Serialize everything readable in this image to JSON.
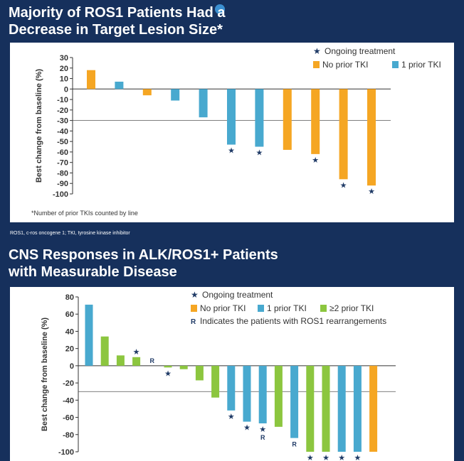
{
  "top": {
    "title_line1": "Majority of ROS1 Patients Had a",
    "title_line2": "Decrease in Target Lesion Size*",
    "footnote": "*Number of prior TKIs counted by line"
  },
  "abbreviations": "ROS1, c-ros oncogene 1; TKI, tyrosine kinase inhibitor",
  "bottom": {
    "title_line1": "CNS Responses in ALK/ROS1+ Patients",
    "title_line2": "with Measurable Disease"
  },
  "colors": {
    "no_prior_tki": "#f5a623",
    "one_prior_tki": "#48a9cf",
    "two_plus_prior_tki": "#8cc63f",
    "background": "#16305c"
  },
  "chart_data": [
    {
      "type": "bar",
      "ylabel": "Best change from baseline (%)",
      "ylim": [
        -100,
        30
      ],
      "yticks": [
        30,
        20,
        10,
        0,
        -10,
        -20,
        -30,
        -40,
        -50,
        -60,
        -70,
        -80,
        -90,
        -100
      ],
      "reference_line": -30,
      "legend": {
        "ongoing": "Ongoing treatment",
        "items": [
          {
            "key": "no_prior",
            "label": "No prior TKI",
            "color": "#f5a623"
          },
          {
            "key": "one_prior",
            "label": "1 prior TKI",
            "color": "#48a9cf"
          }
        ]
      },
      "bars": [
        {
          "value": 18,
          "group": "no_prior",
          "ongoing": false
        },
        {
          "value": 7,
          "group": "one_prior",
          "ongoing": false
        },
        {
          "value": -6,
          "group": "no_prior",
          "ongoing": false
        },
        {
          "value": -11,
          "group": "one_prior",
          "ongoing": false
        },
        {
          "value": -27,
          "group": "one_prior",
          "ongoing": false
        },
        {
          "value": -53,
          "group": "one_prior",
          "ongoing": true
        },
        {
          "value": -55,
          "group": "one_prior",
          "ongoing": true
        },
        {
          "value": -58,
          "group": "no_prior",
          "ongoing": false
        },
        {
          "value": -62,
          "group": "no_prior",
          "ongoing": true
        },
        {
          "value": -86,
          "group": "no_prior",
          "ongoing": true
        },
        {
          "value": -92,
          "group": "no_prior",
          "ongoing": true
        }
      ]
    },
    {
      "type": "bar",
      "ylabel": "Best change from baseline (%)",
      "ylim": [
        -100,
        80
      ],
      "yticks": [
        80,
        60,
        40,
        20,
        0,
        -20,
        -40,
        -60,
        -80,
        -100
      ],
      "reference_line": -30,
      "legend": {
        "ongoing": "Ongoing treatment",
        "rearrangement_marker": "R",
        "rearrangement_label": "Indicates the patients with ROS1 rearrangements",
        "items": [
          {
            "key": "no_prior",
            "label": "No prior TKI",
            "color": "#f5a623"
          },
          {
            "key": "one_prior",
            "label": "1 prior TKI",
            "color": "#48a9cf"
          },
          {
            "key": "two_plus",
            "label": "≥2 prior TKI",
            "color": "#8cc63f"
          }
        ]
      },
      "bars": [
        {
          "value": 71,
          "group": "one_prior",
          "ongoing": false,
          "ros1": false
        },
        {
          "value": 34,
          "group": "two_plus",
          "ongoing": false,
          "ros1": false
        },
        {
          "value": 12,
          "group": "two_plus",
          "ongoing": false,
          "ros1": false
        },
        {
          "value": 10,
          "group": "two_plus",
          "ongoing": true,
          "ros1": false
        },
        {
          "value": 0,
          "group": "one_prior",
          "ongoing": false,
          "ros1": true
        },
        {
          "value": -2,
          "group": "two_plus",
          "ongoing": true,
          "ros1": false
        },
        {
          "value": -4,
          "group": "two_plus",
          "ongoing": false,
          "ros1": false
        },
        {
          "value": -17,
          "group": "two_plus",
          "ongoing": false,
          "ros1": false
        },
        {
          "value": -37,
          "group": "two_plus",
          "ongoing": false,
          "ros1": false
        },
        {
          "value": -52,
          "group": "one_prior",
          "ongoing": true,
          "ros1": false
        },
        {
          "value": -65,
          "group": "one_prior",
          "ongoing": true,
          "ros1": false
        },
        {
          "value": -67,
          "group": "one_prior",
          "ongoing": true,
          "ros1": true
        },
        {
          "value": -71,
          "group": "two_plus",
          "ongoing": false,
          "ros1": false
        },
        {
          "value": -84,
          "group": "one_prior",
          "ongoing": false,
          "ros1": true
        },
        {
          "value": -100,
          "group": "two_plus",
          "ongoing": true,
          "ros1": false
        },
        {
          "value": -100,
          "group": "two_plus",
          "ongoing": true,
          "ros1": false
        },
        {
          "value": -100,
          "group": "one_prior",
          "ongoing": true,
          "ros1": false
        },
        {
          "value": -100,
          "group": "one_prior",
          "ongoing": true,
          "ros1": false
        },
        {
          "value": -100,
          "group": "no_prior",
          "ongoing": false,
          "ros1": false
        }
      ]
    }
  ]
}
